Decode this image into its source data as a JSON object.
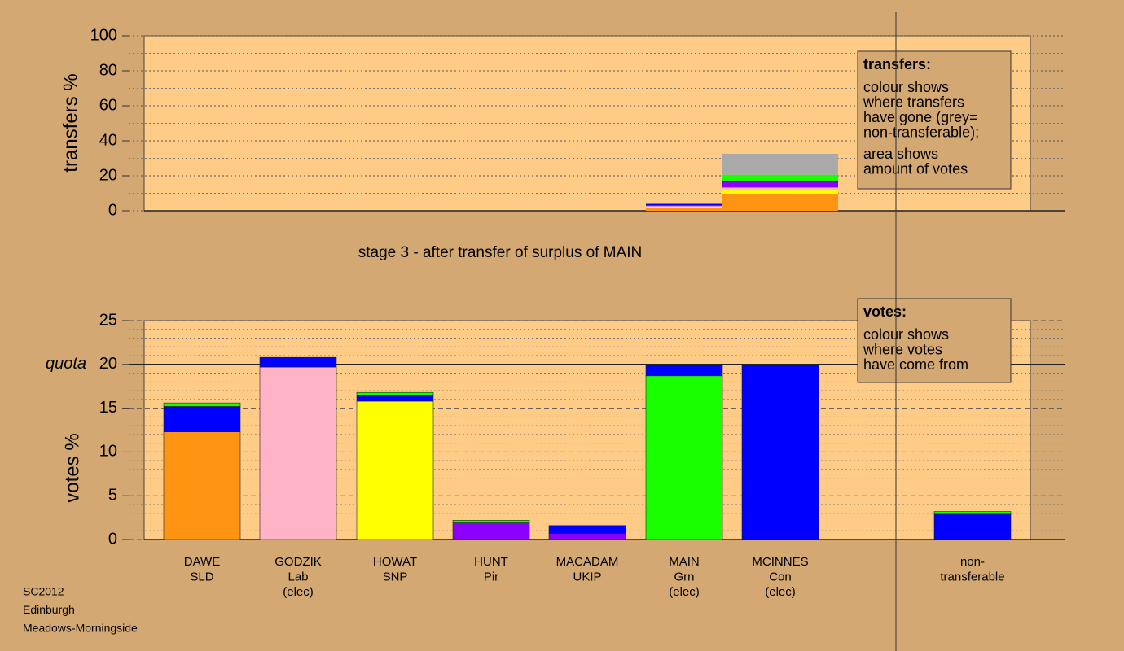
{
  "chart_data": [
    {
      "type": "stacked_bar",
      "ylabel": "transfers %",
      "xlabel": "stage 3 - after transfer of surplus of MAIN",
      "ylim": [
        0,
        100
      ],
      "yticks": [
        0,
        20,
        40,
        60,
        80,
        100
      ],
      "grid": true,
      "categories": [
        null,
        null
      ],
      "series": [
        {
          "color": "#ff9412",
          "values": [
            1.5,
            9.8
          ]
        },
        {
          "color": "#ffff00",
          "values": [
            0.8,
            2.0
          ]
        },
        {
          "color": "#ffb3c6",
          "values": [
            0.4,
            1.5
          ]
        },
        {
          "color": "#8c00ff",
          "values": [
            0.4,
            3.0
          ]
        },
        {
          "color": "#0000ff",
          "values": [
            0.8,
            0.8
          ]
        },
        {
          "color": "#1aff00",
          "values": [
            0.3,
            3.5
          ]
        },
        {
          "color": "#aaaaaa",
          "values": [
            0,
            12
          ]
        }
      ],
      "note": {
        "title": "transfers:",
        "lines": [
          "colour shows",
          "where transfers",
          "have gone (grey=",
          "non-transferable);",
          "area shows",
          "amount of votes"
        ]
      }
    },
    {
      "type": "stacked_bar",
      "ylabel": "votes %",
      "ylim": [
        0,
        25
      ],
      "yticks": [
        0,
        5,
        10,
        15,
        20,
        25
      ],
      "quota": {
        "value": 20,
        "label": "quota"
      },
      "grid": true,
      "categories": [
        [
          "DAWE",
          "SLD"
        ],
        [
          "GODZIK",
          "Lab",
          "(elec)"
        ],
        [
          "HOWAT",
          "SNP"
        ],
        [
          "HUNT",
          "Pir"
        ],
        [
          "MACADAM",
          "UKIP"
        ],
        [
          "MAIN",
          "Grn",
          "(elec)"
        ],
        [
          "MCINNES",
          "Con",
          "(elec)"
        ],
        [
          "non-",
          "transferable"
        ]
      ],
      "series": [
        {
          "color": "#ff9412",
          "values": [
            12.3,
            0,
            0,
            0,
            0,
            0,
            0,
            0
          ]
        },
        {
          "color": "#ffb3c6",
          "values": [
            0,
            19.7,
            0,
            0,
            0,
            0,
            0,
            0
          ]
        },
        {
          "color": "#ffff00",
          "values": [
            0,
            0,
            15.8,
            0,
            0,
            0,
            0,
            0
          ]
        },
        {
          "color": "#8c00ff",
          "values": [
            0,
            0,
            0,
            1.9,
            0.7,
            0,
            0,
            0
          ]
        },
        {
          "color": "#1aff00",
          "values": [
            0,
            0,
            0,
            0,
            0,
            18.7,
            0,
            0
          ]
        },
        {
          "color": "#0000ff",
          "values": [
            2.9,
            1.1,
            0.7,
            0,
            0.9,
            1.3,
            20,
            2.9
          ]
        },
        {
          "color": "#1aff00",
          "values": [
            0.4,
            0,
            0.3,
            0.3,
            0,
            0,
            0,
            0.3
          ]
        }
      ],
      "note": {
        "title": "votes:",
        "lines": [
          "colour shows",
          "where votes",
          "have come from"
        ]
      }
    }
  ],
  "footer": [
    "SC2012",
    "Edinburgh",
    "Meadows-Morningside"
  ]
}
